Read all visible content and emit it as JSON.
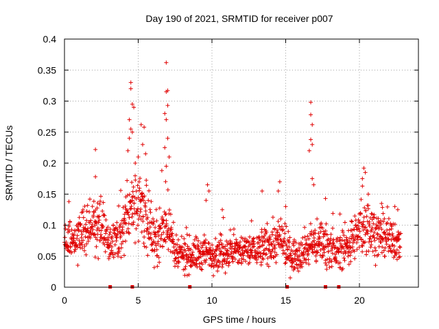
{
  "chart_data": {
    "type": "scatter",
    "title": "Day 190 of 2021, SRMTID for receiver p007",
    "xlabel": "GPS time / hours",
    "ylabel": "SRMTID / TECUs",
    "xlim": [
      0,
      24
    ],
    "ylim": [
      0,
      0.4
    ],
    "x_ticks": [
      0,
      5,
      10,
      15,
      20
    ],
    "x_tick_labels": [
      "0",
      "5",
      "10",
      "15",
      "20"
    ],
    "y_ticks": [
      0,
      0.05,
      0.1,
      0.15,
      0.2,
      0.25,
      0.3,
      0.35,
      0.4
    ],
    "y_tick_labels": [
      "0",
      "0.05",
      "0.1",
      "0.15",
      "0.2",
      "0.25",
      "0.3",
      "0.35",
      "0.4"
    ],
    "grid": true,
    "marker": "plus",
    "color": "#e00000",
    "x_range_of_points": [
      0,
      22.8
    ],
    "gap_markers_x": [
      3.1,
      4.6,
      8.5,
      15.1,
      17.7,
      18.6
    ],
    "spikes": [
      {
        "x": 4.5,
        "y": 0.33
      },
      {
        "x": 4.5,
        "y": 0.32
      },
      {
        "x": 4.6,
        "y": 0.295
      },
      {
        "x": 4.7,
        "y": 0.29
      },
      {
        "x": 4.4,
        "y": 0.27
      },
      {
        "x": 4.5,
        "y": 0.255
      },
      {
        "x": 4.4,
        "y": 0.24
      },
      {
        "x": 4.3,
        "y": 0.22
      },
      {
        "x": 4.6,
        "y": 0.25
      },
      {
        "x": 5.2,
        "y": 0.262
      },
      {
        "x": 5.4,
        "y": 0.258
      },
      {
        "x": 5.3,
        "y": 0.23
      },
      {
        "x": 5.5,
        "y": 0.215
      },
      {
        "x": 5.0,
        "y": 0.21
      },
      {
        "x": 4.8,
        "y": 0.2
      },
      {
        "x": 6.9,
        "y": 0.362
      },
      {
        "x": 7.0,
        "y": 0.317
      },
      {
        "x": 6.9,
        "y": 0.315
      },
      {
        "x": 7.0,
        "y": 0.293
      },
      {
        "x": 6.8,
        "y": 0.28
      },
      {
        "x": 6.9,
        "y": 0.27
      },
      {
        "x": 7.0,
        "y": 0.24
      },
      {
        "x": 6.8,
        "y": 0.225
      },
      {
        "x": 7.1,
        "y": 0.21
      },
      {
        "x": 6.9,
        "y": 0.195
      },
      {
        "x": 6.6,
        "y": 0.188
      },
      {
        "x": 2.1,
        "y": 0.222
      },
      {
        "x": 2.1,
        "y": 0.178
      },
      {
        "x": 0.3,
        "y": 0.138
      },
      {
        "x": 9.7,
        "y": 0.165
      },
      {
        "x": 9.8,
        "y": 0.155
      },
      {
        "x": 9.6,
        "y": 0.14
      },
      {
        "x": 10.7,
        "y": 0.125
      },
      {
        "x": 13.4,
        "y": 0.155
      },
      {
        "x": 14.6,
        "y": 0.17
      },
      {
        "x": 14.5,
        "y": 0.155
      },
      {
        "x": 15.0,
        "y": 0.13
      },
      {
        "x": 16.7,
        "y": 0.298
      },
      {
        "x": 16.7,
        "y": 0.278
      },
      {
        "x": 16.8,
        "y": 0.262
      },
      {
        "x": 16.7,
        "y": 0.238
      },
      {
        "x": 16.8,
        "y": 0.23
      },
      {
        "x": 16.6,
        "y": 0.22
      },
      {
        "x": 16.8,
        "y": 0.175
      },
      {
        "x": 16.9,
        "y": 0.165
      },
      {
        "x": 17.7,
        "y": 0.143
      },
      {
        "x": 20.3,
        "y": 0.192
      },
      {
        "x": 20.4,
        "y": 0.185
      },
      {
        "x": 20.2,
        "y": 0.175
      },
      {
        "x": 20.2,
        "y": 0.163
      },
      {
        "x": 20.6,
        "y": 0.15
      },
      {
        "x": 21.5,
        "y": 0.135
      },
      {
        "x": 22.4,
        "y": 0.13
      },
      {
        "x": 22.6,
        "y": 0.125
      }
    ],
    "baseline_profile": [
      {
        "x": 0,
        "mean": 0.07,
        "spread": 0.02
      },
      {
        "x": 1,
        "mean": 0.08,
        "spread": 0.025
      },
      {
        "x": 1.5,
        "mean": 0.1,
        "spread": 0.03
      },
      {
        "x": 2.5,
        "mean": 0.1,
        "spread": 0.03
      },
      {
        "x": 3,
        "mean": 0.07,
        "spread": 0.02
      },
      {
        "x": 4,
        "mean": 0.09,
        "spread": 0.025
      },
      {
        "x": 4.6,
        "mean": 0.14,
        "spread": 0.04
      },
      {
        "x": 5.5,
        "mean": 0.12,
        "spread": 0.035
      },
      {
        "x": 6.2,
        "mean": 0.07,
        "spread": 0.025
      },
      {
        "x": 7,
        "mean": 0.11,
        "spread": 0.035
      },
      {
        "x": 7.5,
        "mean": 0.05,
        "spread": 0.02
      },
      {
        "x": 10,
        "mean": 0.055,
        "spread": 0.02
      },
      {
        "x": 13,
        "mean": 0.06,
        "spread": 0.02
      },
      {
        "x": 14.5,
        "mean": 0.075,
        "spread": 0.025
      },
      {
        "x": 15.5,
        "mean": 0.05,
        "spread": 0.02
      },
      {
        "x": 16.5,
        "mean": 0.065,
        "spread": 0.02
      },
      {
        "x": 17.5,
        "mean": 0.075,
        "spread": 0.025
      },
      {
        "x": 18.5,
        "mean": 0.055,
        "spread": 0.02
      },
      {
        "x": 19.5,
        "mean": 0.075,
        "spread": 0.025
      },
      {
        "x": 20.5,
        "mean": 0.1,
        "spread": 0.03
      },
      {
        "x": 21.5,
        "mean": 0.08,
        "spread": 0.025
      },
      {
        "x": 22.8,
        "mean": 0.07,
        "spread": 0.02
      }
    ]
  }
}
